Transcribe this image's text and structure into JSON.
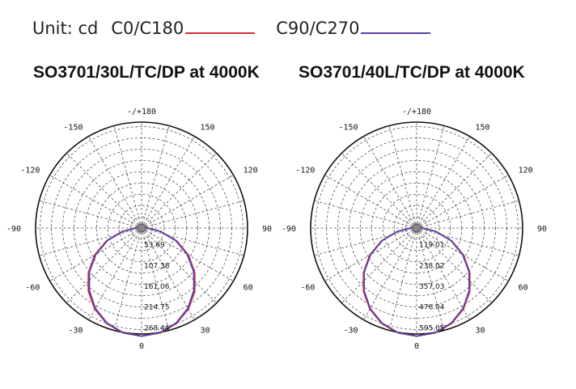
{
  "legend": {
    "unit": "Unit: cd",
    "entries": [
      {
        "label": "C0/C180",
        "color": "#d32f3a"
      },
      {
        "label": "C90/C270",
        "color": "#5b3fa8"
      }
    ]
  },
  "chart_data": [
    {
      "type": "polar",
      "title": "SO3701/30L/TC/DP at 4000K",
      "angle_labels": [
        {
          "deg": 180,
          "label": "-/+180"
        },
        {
          "deg": 150,
          "label": "150"
        },
        {
          "deg": -150,
          "label": "-150"
        },
        {
          "deg": 120,
          "label": "120"
        },
        {
          "deg": -120,
          "label": "-120"
        },
        {
          "deg": 90,
          "label": "90"
        },
        {
          "deg": -90,
          "label": "-90"
        },
        {
          "deg": 60,
          "label": "60"
        },
        {
          "deg": -60,
          "label": "-60"
        },
        {
          "deg": 30,
          "label": "30"
        },
        {
          "deg": -30,
          "label": "-30"
        },
        {
          "deg": 0,
          "label": "0"
        }
      ],
      "radial_ticks": [
        "53.69",
        "107.38",
        "161.06",
        "214.75",
        "268.44"
      ],
      "rmax": 268.44,
      "series": [
        {
          "color": "#d32f3a",
          "angles": [
            0,
            10,
            20,
            30,
            40,
            50,
            60,
            70,
            80,
            90,
            100,
            110,
            120,
            130,
            140,
            150,
            160,
            170,
            180
          ],
          "values": [
            268.44,
            264.5,
            252.5,
            232.5,
            205.5,
            172.5,
            134.5,
            92.5,
            48.5,
            16,
            11,
            9,
            8,
            7,
            6,
            5.5,
            5,
            5,
            5
          ]
        },
        {
          "color": "#5b3fa8",
          "angles": [
            0,
            10,
            20,
            30,
            40,
            50,
            60,
            70,
            80,
            90,
            100,
            110,
            120,
            130,
            140,
            150,
            160,
            170,
            180
          ],
          "values": [
            268.44,
            264,
            251,
            230,
            202,
            169,
            131,
            90,
            47,
            15,
            10,
            8.5,
            7.5,
            6.5,
            6,
            5.5,
            5,
            5,
            5
          ]
        }
      ]
    },
    {
      "type": "polar",
      "title": "SO3701/40L/TC/DP at 4000K",
      "angle_labels": [
        {
          "deg": 180,
          "label": "-/+180"
        },
        {
          "deg": 150,
          "label": "150"
        },
        {
          "deg": -150,
          "label": "-150"
        },
        {
          "deg": 120,
          "label": "120"
        },
        {
          "deg": -120,
          "label": "-120"
        },
        {
          "deg": 90,
          "label": "90"
        },
        {
          "deg": -90,
          "label": "-90"
        },
        {
          "deg": 60,
          "label": "60"
        },
        {
          "deg": -60,
          "label": "-60"
        },
        {
          "deg": 30,
          "label": "30"
        },
        {
          "deg": -30,
          "label": "-30"
        },
        {
          "deg": 0,
          "label": "0"
        }
      ],
      "radial_ticks": [
        "119.01",
        "238.02",
        "357.03",
        "476.04",
        "595.05"
      ],
      "rmax": 595.05,
      "series": [
        {
          "color": "#d32f3a",
          "angles": [
            0,
            10,
            20,
            30,
            40,
            50,
            60,
            70,
            80,
            90,
            100,
            110,
            120,
            130,
            140,
            150,
            160,
            170,
            180
          ],
          "values": [
            595.05,
            586,
            560,
            515,
            455,
            382,
            298,
            205,
            108,
            35,
            22,
            18,
            16,
            14,
            13,
            12,
            11,
            11,
            11
          ]
        },
        {
          "color": "#5b3fa8",
          "angles": [
            0,
            10,
            20,
            30,
            40,
            50,
            60,
            70,
            80,
            90,
            100,
            110,
            120,
            130,
            140,
            150,
            160,
            170,
            180
          ],
          "values": [
            595.05,
            585,
            557,
            511,
            450,
            377,
            293,
            201,
            106,
            33,
            21,
            17,
            15,
            13,
            12,
            11,
            10,
            10,
            10
          ]
        }
      ]
    }
  ]
}
